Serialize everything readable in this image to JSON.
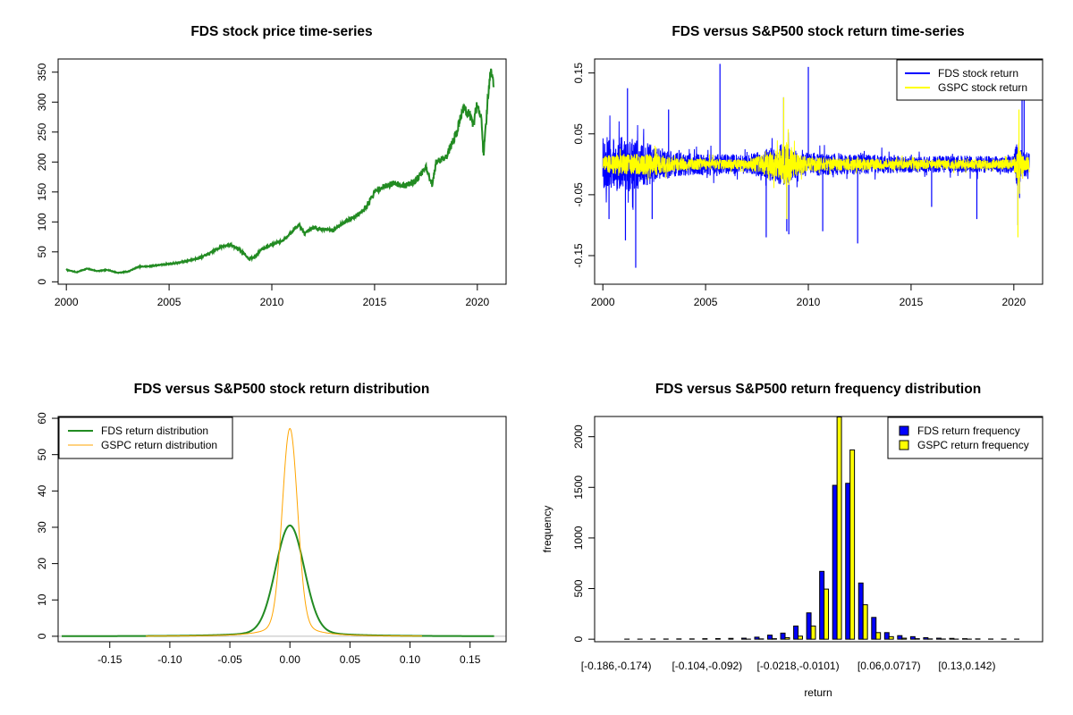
{
  "colors": {
    "fds_price": "#228B22",
    "fds_return": "#0000FF",
    "gspc_return": "#FFFF00",
    "fds_density": "#228B22",
    "gspc_density": "#FFA500",
    "zero_line": "#BEBEBE",
    "axis": "#000000"
  },
  "chart_data": [
    {
      "id": "price",
      "type": "line",
      "title": "FDS stock price time-series",
      "xlabel": "",
      "ylabel": "",
      "xlim": [
        1999.6,
        2021.4
      ],
      "ylim": [
        -4,
        372
      ],
      "xticks": [
        2000,
        2005,
        2010,
        2015,
        2020
      ],
      "xtick_labels": [
        "2000",
        "2005",
        "2010",
        "2015",
        "2020"
      ],
      "yticks": [
        0,
        50,
        100,
        150,
        200,
        250,
        300,
        350
      ],
      "ytick_labels": [
        "0",
        "50",
        "100",
        "150",
        "200",
        "250",
        "300",
        "350"
      ],
      "series": [
        {
          "color_key": "fds_price",
          "x": [
            2000.0,
            2000.5,
            2001.0,
            2001.5,
            2002.0,
            2002.5,
            2003.0,
            2003.5,
            2004.0,
            2004.5,
            2005.0,
            2005.5,
            2006.0,
            2006.5,
            2007.0,
            2007.5,
            2008.0,
            2008.5,
            2008.9,
            2009.2,
            2009.5,
            2010.0,
            2010.5,
            2011.0,
            2011.3,
            2011.6,
            2012.0,
            2012.5,
            2013.0,
            2013.5,
            2014.0,
            2014.5,
            2015.0,
            2015.5,
            2016.0,
            2016.5,
            2017.0,
            2017.5,
            2017.8,
            2018.0,
            2018.5,
            2019.0,
            2019.3,
            2019.6,
            2019.8,
            2020.0,
            2020.2,
            2020.3,
            2020.5,
            2020.65,
            2020.8
          ],
          "values": [
            20,
            16,
            22,
            18,
            20,
            15,
            17,
            25,
            26,
            28,
            30,
            32,
            36,
            40,
            48,
            58,
            62,
            52,
            38,
            42,
            55,
            62,
            68,
            84,
            96,
            80,
            90,
            88,
            86,
            100,
            108,
            120,
            150,
            160,
            165,
            160,
            170,
            190,
            160,
            200,
            210,
            250,
            290,
            280,
            260,
            300,
            270,
            210,
            300,
            360,
            325
          ]
        }
      ]
    },
    {
      "id": "returns",
      "type": "line",
      "title": "FDS versus S&P500 stock return time-series",
      "xlabel": "",
      "ylabel": "",
      "xlim": [
        1999.6,
        2021.4
      ],
      "ylim": [
        -0.197,
        0.173
      ],
      "xticks": [
        2000,
        2005,
        2010,
        2015,
        2020
      ],
      "xtick_labels": [
        "2000",
        "2005",
        "2010",
        "2015",
        "2020"
      ],
      "yticks": [
        -0.15,
        -0.05,
        0.05,
        0.15
      ],
      "ytick_labels": [
        "-0.15",
        "-0.05",
        "0.05",
        "0.15"
      ],
      "legend": {
        "position": "top-right",
        "entries": [
          "FDS stock return",
          "GSPC stock return"
        ]
      },
      "series": [
        {
          "name": "FDS stock return",
          "color_key": "fds_return",
          "x_start": 2000.0,
          "x_end": 2020.75,
          "volatility": [
            [
              2000.0,
              0.045
            ],
            [
              2001.5,
              0.045
            ],
            [
              2002.5,
              0.03
            ],
            [
              2003.5,
              0.02
            ],
            [
              2007.0,
              0.015
            ],
            [
              2008.8,
              0.035
            ],
            [
              2009.5,
              0.02
            ],
            [
              2015.0,
              0.014
            ],
            [
              2020.0,
              0.014
            ],
            [
              2020.2,
              0.05
            ],
            [
              2020.4,
              0.02
            ],
            [
              2020.75,
              0.02
            ]
          ],
          "spikes": [
            [
              2000.3,
              -0.09
            ],
            [
              2001.2,
              0.125
            ],
            [
              2001.6,
              -0.17
            ],
            [
              2001.1,
              -0.125
            ],
            [
              2002.4,
              -0.09
            ],
            [
              2003.2,
              0.09
            ],
            [
              2005.7,
              0.165
            ],
            [
              2007.95,
              -0.12
            ],
            [
              2008.8,
              0.11
            ],
            [
              2008.95,
              -0.11
            ],
            [
              2009.05,
              -0.115
            ],
            [
              2010.0,
              0.16
            ],
            [
              2010.7,
              -0.11
            ],
            [
              2012.4,
              -0.13
            ],
            [
              2016.0,
              -0.07
            ],
            [
              2018.2,
              -0.09
            ],
            [
              2020.2,
              -0.1
            ],
            [
              2020.4,
              0.12
            ],
            [
              2020.5,
              0.15
            ]
          ]
        },
        {
          "name": "GSPC stock return",
          "color_key": "gspc_return",
          "x_start": 2000.0,
          "x_end": 2020.75,
          "volatility": [
            [
              2000.0,
              0.015
            ],
            [
              2002.5,
              0.018
            ],
            [
              2003.5,
              0.01
            ],
            [
              2007.0,
              0.008
            ],
            [
              2008.6,
              0.025
            ],
            [
              2008.9,
              0.04
            ],
            [
              2009.4,
              0.02
            ],
            [
              2010.0,
              0.012
            ],
            [
              2012.0,
              0.01
            ],
            [
              2015.0,
              0.008
            ],
            [
              2020.0,
              0.008
            ],
            [
              2020.2,
              0.04
            ],
            [
              2020.4,
              0.015
            ],
            [
              2020.75,
              0.012
            ]
          ],
          "spikes": [
            [
              2008.8,
              0.11
            ],
            [
              2008.95,
              -0.09
            ],
            [
              2020.2,
              -0.12
            ],
            [
              2020.25,
              0.09
            ]
          ]
        }
      ]
    },
    {
      "id": "density",
      "type": "line",
      "title": "FDS versus S&P500 stock return distribution",
      "xlabel": "",
      "ylabel": "",
      "xlim": [
        -0.193,
        0.18
      ],
      "ylim": [
        -1.5,
        60.5
      ],
      "xticks": [
        -0.15,
        -0.1,
        -0.05,
        0.0,
        0.05,
        0.1,
        0.15
      ],
      "xtick_labels": [
        "-0.15",
        "-0.10",
        "-0.05",
        "0.00",
        "0.05",
        "0.10",
        "0.15"
      ],
      "yticks": [
        0,
        10,
        20,
        30,
        40,
        50,
        60
      ],
      "ytick_labels": [
        "0",
        "10",
        "20",
        "30",
        "40",
        "50",
        "60"
      ],
      "legend": {
        "position": "top-left",
        "entries": [
          "FDS return distribution",
          "GSPC return distribution"
        ]
      },
      "series": [
        {
          "name": "FDS return distribution",
          "color_key": "fds_density",
          "x_range": [
            -0.19,
            0.17
          ],
          "peak": 30.5,
          "scale": 0.0118,
          "tail": 0.045
        },
        {
          "name": "GSPC return distribution",
          "color_key": "gspc_density",
          "x_range": [
            -0.12,
            0.11
          ],
          "peak": 57.2,
          "scale": 0.0063,
          "tail": 0.06
        }
      ]
    },
    {
      "id": "histogram",
      "type": "bar",
      "title": "FDS versus S&P500 return frequency distribution",
      "xlabel": "return",
      "ylabel": "frequency",
      "ylim": [
        -25,
        2200
      ],
      "yticks": [
        0,
        500,
        1000,
        1500,
        2000
      ],
      "ytick_labels": [
        "0",
        "500",
        "1000",
        "1500",
        "2000"
      ],
      "xtick_labels": [
        "[-0.186,-0.174)",
        "[-0.104,-0.092)",
        "[-0.0218,-0.0101)",
        "[0.06,0.0717)",
        "[0.13,0.142)"
      ],
      "xtick_positions": [
        0,
        7,
        14,
        21,
        27
      ],
      "legend": {
        "position": "top-right",
        "entries": [
          "FDS return frequency",
          "GSPC return frequency"
        ]
      },
      "bin_count": 32,
      "series": [
        {
          "name": "FDS return frequency",
          "color_key": "fds_return",
          "values": [
            0,
            1,
            1,
            2,
            2,
            3,
            3,
            5,
            6,
            8,
            10,
            20,
            40,
            60,
            130,
            260,
            670,
            1520,
            1540,
            555,
            215,
            65,
            35,
            25,
            15,
            10,
            8,
            5,
            3,
            2,
            2,
            1
          ]
        },
        {
          "name": "GSPC return frequency",
          "color_key": "gspc_return",
          "values": [
            0,
            0,
            0,
            0,
            0,
            0,
            0,
            0,
            0,
            0,
            1,
            3,
            5,
            15,
            30,
            130,
            495,
            2195,
            1870,
            340,
            65,
            25,
            10,
            5,
            3,
            2,
            1,
            1,
            0,
            0,
            0,
            0
          ]
        }
      ]
    }
  ]
}
